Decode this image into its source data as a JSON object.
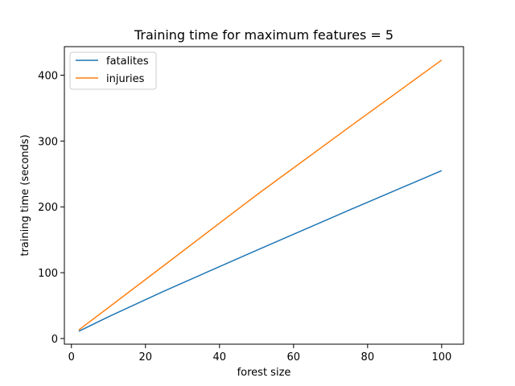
{
  "chart_data": {
    "type": "line",
    "title": "Training time for maximum features  = 5",
    "xlabel": "forest size",
    "ylabel": "training time (seconds)",
    "xlim": [
      -1.9,
      105.9
    ],
    "ylim": [
      -8.6,
      443.4
    ],
    "xticks": [
      0,
      20,
      40,
      60,
      80,
      100
    ],
    "yticks": [
      0,
      100,
      200,
      300,
      400
    ],
    "grid": false,
    "legend_position": "top-left",
    "x": [
      2,
      10,
      25,
      50,
      75,
      100
    ],
    "series": [
      {
        "name": "fatalites",
        "color": "#1f77b4",
        "values": [
          11,
          33,
          72,
          134,
          195,
          255
        ]
      },
      {
        "name": "injuries",
        "color": "#ff7f0e",
        "values": [
          13,
          47,
          111,
          218,
          321,
          423
        ]
      }
    ]
  }
}
